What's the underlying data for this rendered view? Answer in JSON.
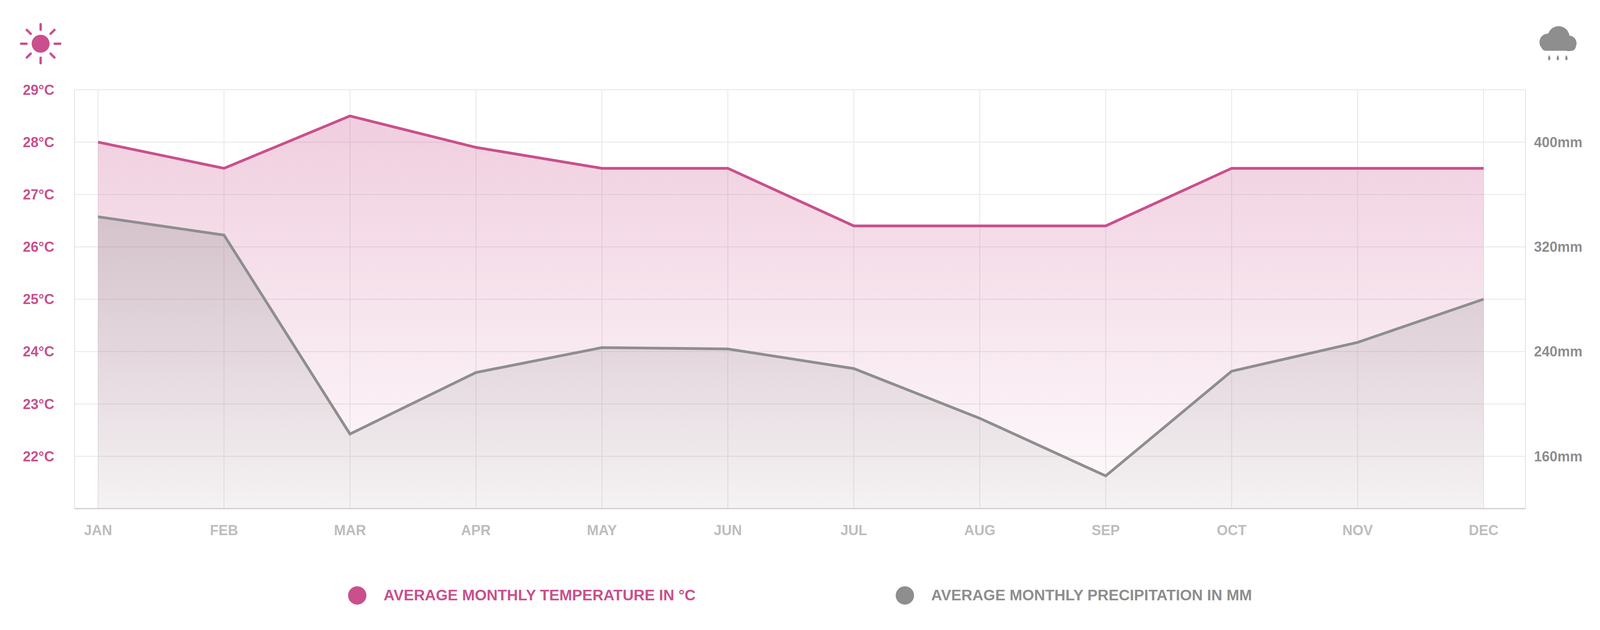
{
  "chart_data": {
    "type": "area",
    "categories": [
      "JAN",
      "FEB",
      "MAR",
      "APR",
      "MAY",
      "JUN",
      "JUL",
      "AUG",
      "SEP",
      "OCT",
      "NOV",
      "DEC"
    ],
    "series": [
      {
        "name": "AVERAGE MONTHLY TEMPERATURE IN °C",
        "color": "#C9508C",
        "values": [
          28,
          27.5,
          28.5,
          27.9,
          27.5,
          27.5,
          26.4,
          26.4,
          26.4,
          27.5,
          27.5,
          27.5
        ]
      },
      {
        "name": "AVERAGE MONTHLY PRECIPITATION IN MM",
        "color": "#8E8E8E",
        "axis": "y2",
        "values": [
          343,
          329,
          177,
          224,
          243,
          242,
          227,
          189,
          145,
          225,
          247,
          280
        ]
      }
    ],
    "ylim": [
      21,
      29
    ],
    "yticks": [
      {
        "value": 22,
        "label": "22°C"
      },
      {
        "value": 23,
        "label": "23°C"
      },
      {
        "value": 24,
        "label": "24°C"
      },
      {
        "value": 25,
        "label": "25°C"
      },
      {
        "value": 26,
        "label": "26°C"
      },
      {
        "value": 27,
        "label": "27°C"
      },
      {
        "value": 28,
        "label": "28°C"
      },
      {
        "value": 29,
        "label": "29°C"
      }
    ],
    "y2lim": [
      120,
      440
    ],
    "y2ticks": [
      {
        "value": 160,
        "label": "160mm"
      },
      {
        "value": 240,
        "label": "240mm"
      },
      {
        "value": 320,
        "label": "320mm"
      },
      {
        "value": 400,
        "label": "400mm"
      }
    ],
    "grid": true,
    "legend": "bottom"
  }
}
